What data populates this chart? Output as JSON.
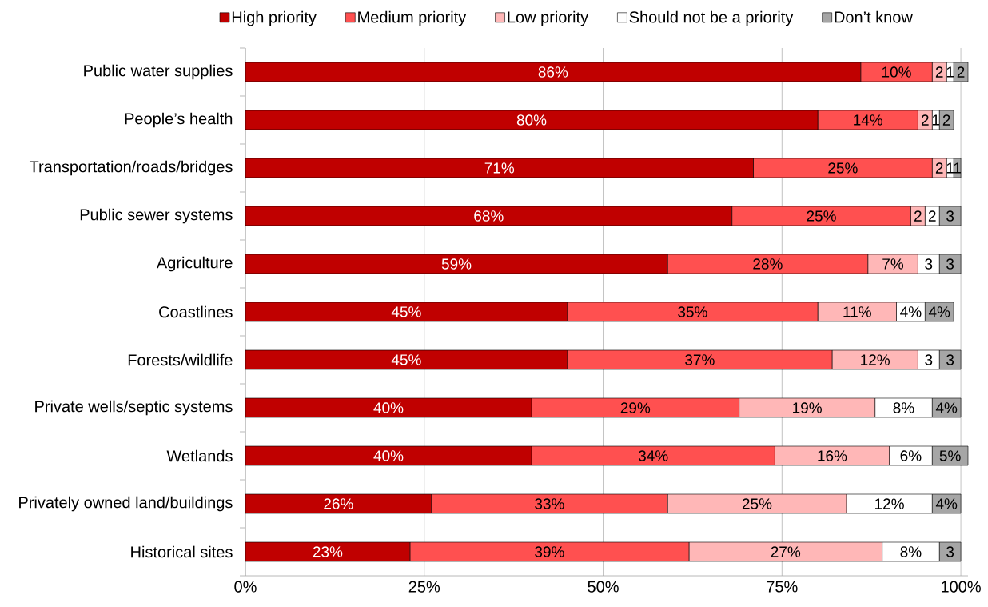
{
  "chart_data": {
    "type": "bar",
    "orientation": "horizontal",
    "stacked": true,
    "categories": [
      "Public water supplies",
      "People’s health",
      "Transportation/roads/bridges",
      "Public sewer systems",
      "Agriculture",
      "Coastlines",
      "Forests/wildlife",
      "Private wells/septic systems",
      "Wetlands",
      "Privately owned land/buildings",
      "Historical sites"
    ],
    "series": [
      {
        "name": "High priority",
        "color": "#c00000",
        "values": [
          86,
          80,
          71,
          68,
          59,
          45,
          45,
          40,
          40,
          26,
          23
        ],
        "value_labels": [
          "86%",
          "80%",
          "71%",
          "68%",
          "59%",
          "45%",
          "45%",
          "40%",
          "40%",
          "26%",
          "23%"
        ]
      },
      {
        "name": "Medium priority",
        "color": "#ff5050",
        "values": [
          10,
          14,
          25,
          25,
          28,
          35,
          37,
          29,
          34,
          33,
          39
        ],
        "value_labels": [
          "10%",
          "14%",
          "25%",
          "25%",
          "28%",
          "35%",
          "37%",
          "29%",
          "34%",
          "33%",
          "39%"
        ]
      },
      {
        "name": "Low priority",
        "color": "#ffb7b7",
        "values": [
          2,
          2,
          2,
          2,
          7,
          11,
          12,
          19,
          16,
          25,
          27
        ],
        "value_labels": [
          "2",
          "2",
          "2",
          "2",
          "7%",
          "11%",
          "12%",
          "19%",
          "16%",
          "25%",
          "27%"
        ]
      },
      {
        "name": "Should not be a priority",
        "color": "#ffffff",
        "values": [
          1,
          1,
          1,
          2,
          3,
          4,
          3,
          8,
          6,
          12,
          8
        ],
        "value_labels": [
          "1",
          "1",
          "1",
          "2",
          "3",
          "4%",
          "3",
          "8%",
          "6%",
          "12%",
          "8%"
        ]
      },
      {
        "name": "Don’t know",
        "color": "#a6a6a6",
        "values": [
          2,
          2,
          1,
          3,
          3,
          4,
          3,
          4,
          5,
          4,
          3
        ],
        "value_labels": [
          "2",
          "2",
          "1",
          "3",
          "3",
          "4%",
          "3",
          "4%",
          "5%",
          "4%",
          "3"
        ]
      }
    ],
    "xlim": [
      0,
      101
    ],
    "xticks": [
      {
        "value": 0,
        "label": "0%"
      },
      {
        "value": 25,
        "label": "25%"
      },
      {
        "value": 50,
        "label": "50%"
      },
      {
        "value": 75,
        "label": "75%"
      },
      {
        "value": 100,
        "label": "100%"
      }
    ],
    "grid": "x",
    "legend": "top"
  }
}
